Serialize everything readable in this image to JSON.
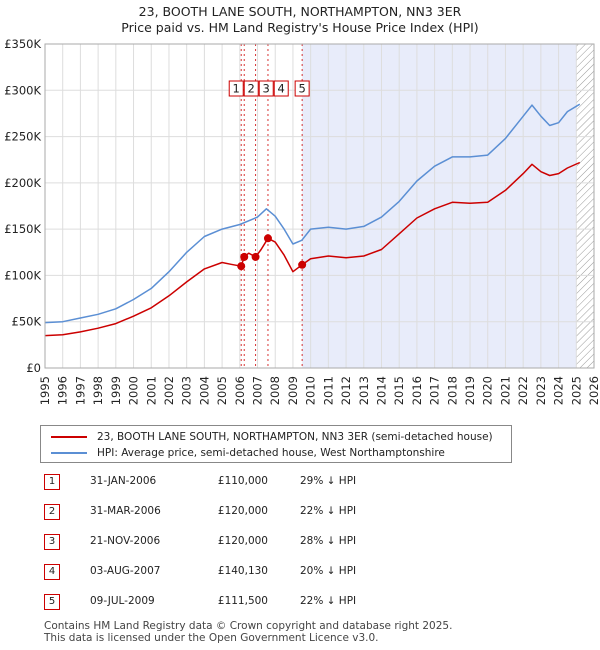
{
  "chart_data": {
    "type": "line",
    "title": "23, BOOTH LANE SOUTH, NORTHAMPTON, NN3 3ER",
    "subtitle": "Price paid vs. HM Land Registry's House Price Index (HPI)",
    "x_range": [
      1995,
      2026
    ],
    "ylim": [
      0,
      350000
    ],
    "y_ticks": [
      0,
      50000,
      100000,
      150000,
      200000,
      250000,
      300000,
      350000
    ],
    "y_tick_labels": [
      "£0",
      "£50K",
      "£100K",
      "£150K",
      "£200K",
      "£250K",
      "£300K",
      "£350K"
    ],
    "x_ticks": [
      1995,
      1996,
      1997,
      1998,
      1999,
      2000,
      2001,
      2002,
      2003,
      2004,
      2005,
      2006,
      2007,
      2008,
      2009,
      2010,
      2011,
      2012,
      2013,
      2014,
      2015,
      2016,
      2017,
      2018,
      2019,
      2020,
      2021,
      2022,
      2023,
      2024,
      2025,
      2026
    ],
    "shaded_region": [
      2009.52,
      2025.0
    ],
    "hatched_region": [
      2025.0,
      2026
    ],
    "series": [
      {
        "name": "23, BOOTH LANE SOUTH, NORTHAMPTON, NN3 3ER (semi-detached house)",
        "color": "#cc0000",
        "x": [
          1995,
          1996,
          1997,
          1998,
          1999,
          2000,
          2001,
          2002,
          2003,
          2004,
          2005,
          2005.5,
          2006.08,
          2006.25,
          2006.5,
          2006.89,
          2007.2,
          2007.59,
          2008.0,
          2008.5,
          2009.0,
          2009.52,
          2010.0,
          2011,
          2012,
          2013,
          2014,
          2015,
          2016,
          2017,
          2018,
          2019,
          2020,
          2021,
          2022,
          2022.5,
          2023,
          2023.5,
          2024,
          2024.5,
          2025.2
        ],
        "values": [
          35000,
          36000,
          39000,
          43000,
          48000,
          56000,
          65000,
          78000,
          93000,
          107000,
          114000,
          112000,
          110000,
          120000,
          124000,
          120000,
          128000,
          140130,
          136000,
          122000,
          104000,
          111500,
          118000,
          121000,
          119000,
          121000,
          128000,
          145000,
          162000,
          172000,
          179000,
          178000,
          179000,
          192000,
          210000,
          220000,
          212000,
          208000,
          210000,
          216000,
          222000
        ]
      },
      {
        "name": "HPI: Average price, semi-detached house, West Northamptonshire",
        "color": "#5b8fd4",
        "x": [
          1995,
          1996,
          1997,
          1998,
          1999,
          2000,
          2001,
          2002,
          2003,
          2004,
          2005,
          2006,
          2007,
          2007.5,
          2008.0,
          2008.5,
          2009.0,
          2009.5,
          2010.0,
          2011,
          2012,
          2013,
          2014,
          2015,
          2016,
          2017,
          2018,
          2019,
          2020,
          2021,
          2022,
          2022.5,
          2023,
          2023.5,
          2024,
          2024.5,
          2025.2
        ],
        "values": [
          49000,
          50000,
          54000,
          58000,
          64000,
          74000,
          86000,
          104000,
          125000,
          142000,
          150000,
          155000,
          163000,
          172000,
          164000,
          150000,
          134000,
          138000,
          150000,
          152000,
          150000,
          153000,
          163000,
          180000,
          202000,
          218000,
          228000,
          228000,
          230000,
          248000,
          272000,
          284000,
          272000,
          262000,
          265000,
          277000,
          285000
        ]
      }
    ],
    "sales": [
      {
        "label": "1",
        "x": 2006.08,
        "value": 110000
      },
      {
        "label": "2",
        "x": 2006.25,
        "value": 120000
      },
      {
        "label": "3",
        "x": 2006.89,
        "value": 120000
      },
      {
        "label": "4",
        "x": 2007.59,
        "value": 140130
      },
      {
        "label": "5",
        "x": 2009.52,
        "value": 111500
      }
    ]
  },
  "legend": {
    "property": "23, BOOTH LANE SOUTH, NORTHAMPTON, NN3 3ER (semi-detached house)",
    "hpi": "HPI: Average price, semi-detached house, West Northamptonshire"
  },
  "sales_table": [
    {
      "num": "1",
      "date": "31-JAN-2006",
      "price": "£110,000",
      "delta": "29% ↓ HPI"
    },
    {
      "num": "2",
      "date": "31-MAR-2006",
      "price": "£120,000",
      "delta": "22% ↓ HPI"
    },
    {
      "num": "3",
      "date": "21-NOV-2006",
      "price": "£120,000",
      "delta": "28% ↓ HPI"
    },
    {
      "num": "4",
      "date": "03-AUG-2007",
      "price": "£140,130",
      "delta": "20% ↓ HPI"
    },
    {
      "num": "5",
      "date": "09-JUL-2009",
      "price": "£111,500",
      "delta": "22% ↓ HPI"
    }
  ],
  "footer": {
    "line1": "Contains HM Land Registry data © Crown copyright and database right 2025.",
    "line2": "This data is licensed under the Open Government Licence v3.0."
  }
}
